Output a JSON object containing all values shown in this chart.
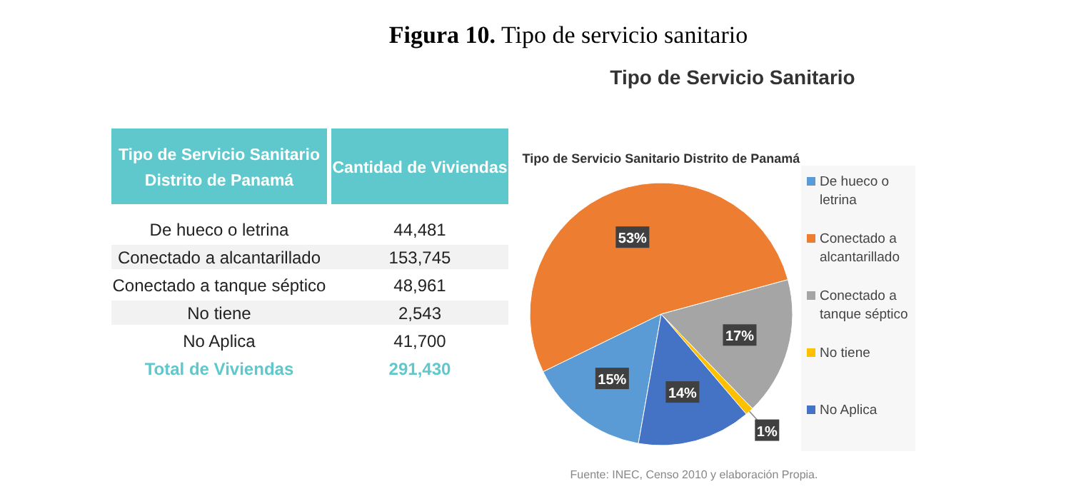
{
  "chart_data": [
    {
      "type": "other",
      "title": "Figura 10. Tipo de servicio sanitario",
      "xlabel": "Tipo de Servicio Sanitario Distrito de Panamá",
      "ylabel": "Cantidad de Viviendas",
      "color": "#5fc8cc",
      "categories": [
        "De hueco o letrina",
        "Conectado a alcantarillado",
        "Conectado a tanque séptico",
        "No tiene",
        "No Aplica",
        "Total de Viviendas"
      ],
      "value_labels": [
        "44,481",
        "153,745",
        "48,961",
        "2,543",
        "41,700",
        "291,430"
      ]
    },
    {
      "type": "pie",
      "title": "Tipo de Servicio Sanitario",
      "subtitle": "Tipo de Servicio Sanitario Distrito de Panamá",
      "categories": [
        "De hueco o letrina",
        "Conectado a alcantarillado",
        "Conectado a tanque séptico",
        "No tiene",
        "No Aplica"
      ],
      "values": [
        15,
        53,
        17,
        1,
        14
      ],
      "value_labels": [
        "15%",
        "53%",
        "17%",
        "1%",
        "14%"
      ],
      "colors": [
        "#5b9bd5",
        "#ed7d31",
        "#a5a5a5",
        "#ffc000",
        "#4472c4"
      ],
      "legend": "right",
      "annotations": [
        "Fuente: INEC, Censo 2010 y elaboración Propia."
      ]
    }
  ]
}
